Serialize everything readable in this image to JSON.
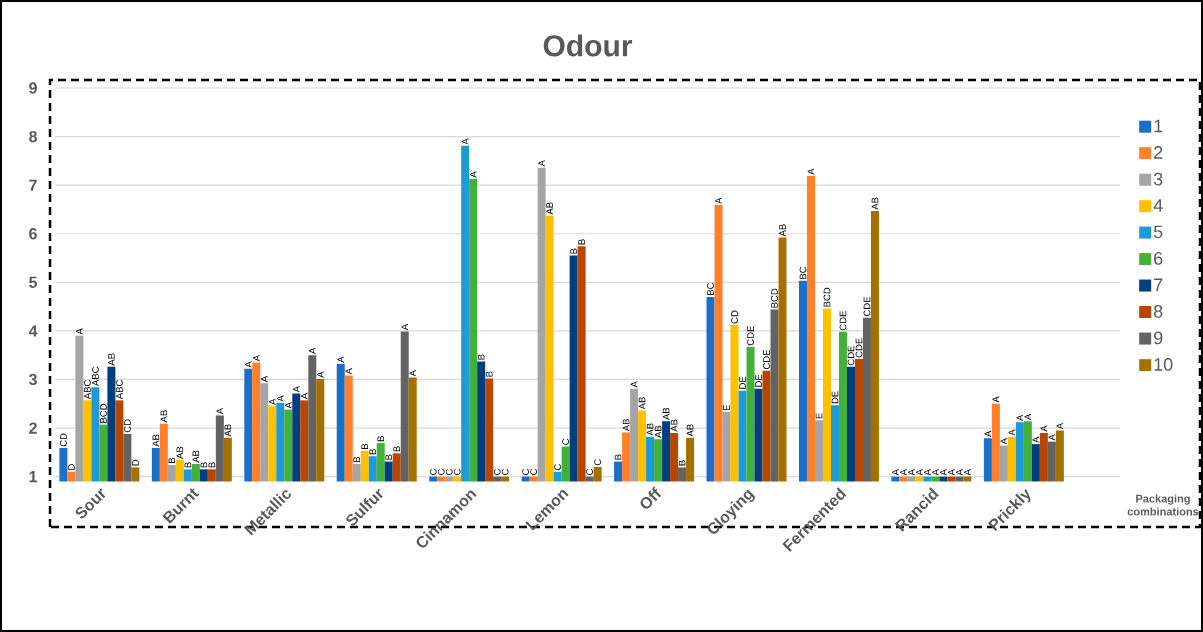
{
  "chart_data": {
    "type": "bar",
    "title": "Odour",
    "legend_title": "Packaging combinations",
    "categories": [
      "Sour",
      "Burnt",
      "Metallic",
      "Sulfur",
      "Cinnamon",
      "Lemon",
      "Off",
      "Cloying",
      "Fermented",
      "Rancid",
      "Prickly"
    ],
    "ylim": [
      0.9,
      9
    ],
    "yticks": [
      1,
      2,
      3,
      4,
      5,
      6,
      7,
      8,
      9
    ],
    "grid": "y",
    "legend": "right",
    "series": [
      {
        "name": "1",
        "color": "#1a6fc8",
        "values": [
          1.59,
          1.59,
          3.22,
          3.32,
          1.0,
          1.0,
          1.31,
          4.7,
          5.03,
          1.0,
          1.79
        ],
        "value_labels": [
          "CD",
          "AB",
          "A",
          "A",
          "C",
          "C",
          "B",
          "BC",
          "BC",
          "A",
          "A"
        ]
      },
      {
        "name": "2",
        "color": "#ff7f2a",
        "values": [
          1.1,
          2.09,
          3.35,
          3.08,
          1.0,
          1.0,
          1.91,
          6.59,
          7.19,
          1.0,
          2.5
        ],
        "value_labels": [
          "D",
          "AB",
          "A",
          "A",
          "C",
          "C",
          "AB",
          "A",
          "A",
          "A",
          "A"
        ]
      },
      {
        "name": "3",
        "color": "#a5a5a5",
        "values": [
          3.9,
          1.24,
          2.92,
          1.26,
          1.0,
          7.36,
          2.81,
          2.33,
          2.16,
          1.0,
          1.64
        ],
        "value_labels": [
          "A",
          "B",
          "A",
          "B",
          "C",
          "A",
          "A",
          "E",
          "E",
          "A",
          "A"
        ]
      },
      {
        "name": "4",
        "color": "#ffc000",
        "values": [
          2.57,
          1.34,
          2.45,
          1.53,
          1.0,
          6.37,
          2.36,
          4.12,
          4.46,
          1.0,
          1.82
        ],
        "value_labels": [
          "ABC",
          "AB",
          "A",
          "B",
          "C",
          "AB",
          "AB",
          "CD",
          "BCD",
          "A",
          "A"
        ]
      },
      {
        "name": "5",
        "color": "#1e9bd7",
        "values": [
          2.84,
          1.15,
          2.52,
          1.42,
          7.81,
          1.1,
          1.82,
          2.77,
          2.47,
          1.0,
          2.12
        ],
        "value_labels": [
          "ABC",
          "B",
          "A",
          "B",
          "A",
          "C",
          "AB",
          "DE",
          "DE",
          "A",
          "A"
        ]
      },
      {
        "name": "6",
        "color": "#43b03c",
        "values": [
          2.07,
          1.26,
          2.38,
          1.69,
          7.13,
          1.62,
          1.77,
          3.67,
          3.98,
          1.0,
          2.14
        ],
        "value_labels": [
          "BCD",
          "AB",
          "A",
          "B",
          "A",
          "C",
          "AB",
          "CDE",
          "CDE",
          "A",
          "A"
        ]
      },
      {
        "name": "7",
        "color": "#003f7f",
        "values": [
          3.26,
          1.15,
          2.71,
          1.31,
          3.37,
          5.55,
          2.14,
          2.81,
          3.26,
          1.0,
          1.67
        ],
        "value_labels": [
          "AB",
          "B",
          "A",
          "B",
          "B",
          "B",
          "AB",
          "DE",
          "CDE",
          "A",
          "A"
        ]
      },
      {
        "name": "8",
        "color": "#b84600",
        "values": [
          2.57,
          1.15,
          2.57,
          1.48,
          3.02,
          5.74,
          1.9,
          3.18,
          3.42,
          1.0,
          1.9
        ],
        "value_labels": [
          "ABC",
          "B",
          "A",
          "B",
          "B",
          "B",
          "AB",
          "CDE",
          "CDE",
          "A",
          "A"
        ]
      },
      {
        "name": "9",
        "color": "#636363",
        "values": [
          1.88,
          2.26,
          3.5,
          3.99,
          1.0,
          1.0,
          1.19,
          4.44,
          4.27,
          1.0,
          1.72
        ],
        "value_labels": [
          "CD",
          "A",
          "A",
          "A",
          "C",
          "C",
          "B",
          "BCD",
          "CDE",
          "A",
          "A"
        ]
      },
      {
        "name": "10",
        "color": "#a47100",
        "values": [
          1.19,
          1.8,
          3.01,
          3.04,
          1.0,
          1.2,
          1.8,
          5.92,
          6.47,
          1.0,
          1.95
        ],
        "value_labels": [
          "D",
          "AB",
          "A",
          "A",
          "C",
          "C",
          "AB",
          "AB",
          "AB",
          "A",
          "A"
        ]
      }
    ]
  }
}
